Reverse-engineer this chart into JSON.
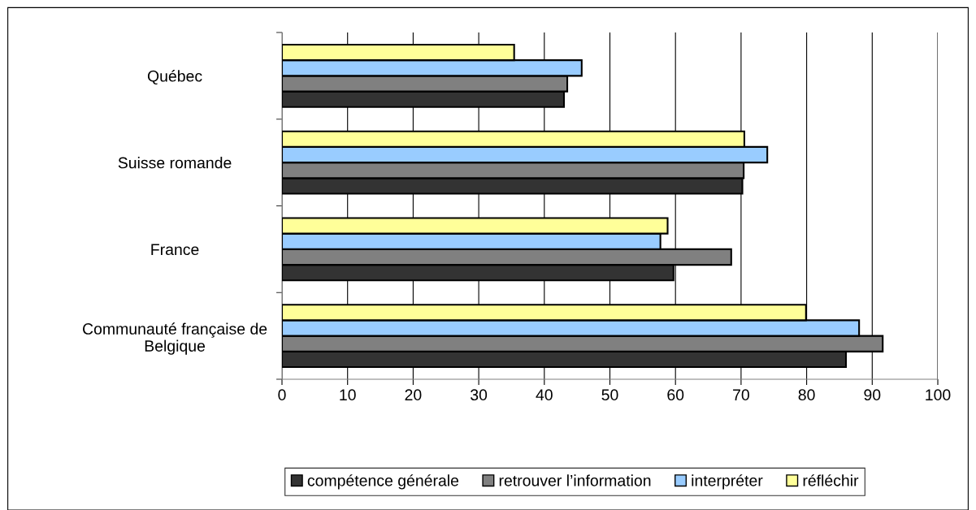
{
  "chart_data": {
    "type": "bar",
    "orientation": "horizontal",
    "categories": [
      "Québec",
      "Suisse romande",
      "France",
      "Communauté française de\nBelgique"
    ],
    "series": [
      {
        "name": "compétence générale",
        "color": "#333333",
        "values": [
          43.0,
          70.2,
          59.7,
          86.0
        ]
      },
      {
        "name": "retrouver l’information",
        "color": "#808080",
        "values": [
          43.5,
          70.4,
          68.5,
          91.6
        ]
      },
      {
        "name": "interpréter",
        "color": "#99ccff",
        "values": [
          45.7,
          74.0,
          57.7,
          88.0
        ]
      },
      {
        "name": "réfléchir",
        "color": "#ffff99",
        "values": [
          35.4,
          70.5,
          58.8,
          79.9
        ]
      }
    ],
    "xlim": [
      0,
      100
    ],
    "xticks": [
      0,
      10,
      20,
      30,
      40,
      50,
      60,
      70,
      80,
      90,
      100
    ],
    "grid": "x",
    "legend": "bottom"
  }
}
